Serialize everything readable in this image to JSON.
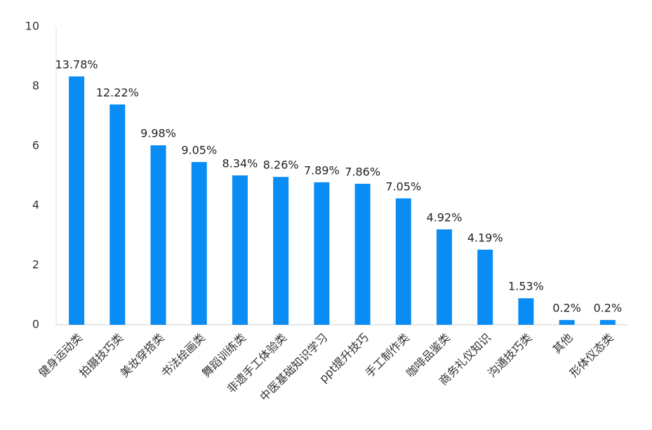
{
  "chart_data": {
    "type": "bar",
    "categories": [
      "健身运动类",
      "拍摄技巧类",
      "美妆穿搭类",
      "书法绘画类",
      "舞蹈训练类",
      "非遗手工体验类",
      "中医基础知识学习",
      "ppt提升技巧",
      "手工制作类",
      "咖啡品鉴类",
      "商务礼仪知识",
      "沟通技巧类",
      "其他",
      "形体仪态类"
    ],
    "values": [
      8.33,
      7.39,
      6.02,
      5.46,
      5.01,
      4.96,
      4.78,
      4.73,
      4.24,
      3.2,
      2.52,
      0.89,
      0.16,
      0.16
    ],
    "annotations": [
      "13.78%",
      "12.22%",
      "9.98%",
      "9.05%",
      "8.34%",
      "8.26%",
      "7.89%",
      "7.86%",
      "7.05%",
      "4.92%",
      "4.19%",
      "1.53%",
      "0.2%",
      "0.2%"
    ],
    "color": "#0a8cf5",
    "ylim": [
      0,
      10
    ],
    "yticks": [
      0,
      2,
      4,
      6,
      8,
      10
    ],
    "grid": false
  }
}
